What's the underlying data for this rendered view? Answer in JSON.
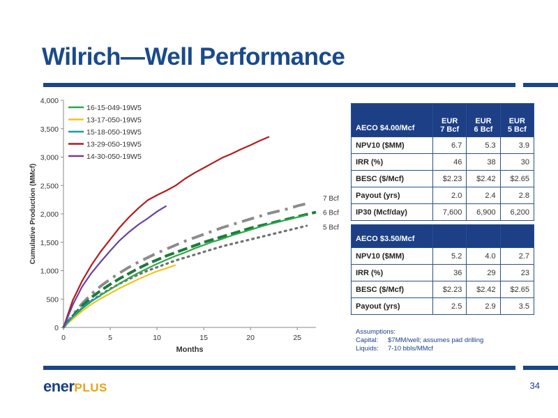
{
  "slide": {
    "title": "Wilrich—Well Performance",
    "page_number": "34",
    "logo": {
      "part1": "ener",
      "part2": "PLUS"
    }
  },
  "colors": {
    "brand_blue": "#1c3f86",
    "title_blue": "#1a4a8a",
    "logo_gold": "#e8a417"
  },
  "chart_data": {
    "type": "line",
    "xlabel": "Months",
    "ylabel": "Cumulative Production (MMcf)",
    "xlim": [
      0,
      27
    ],
    "ylim": [
      0,
      4000
    ],
    "x_ticks": [
      "0",
      "5",
      "10",
      "15",
      "20",
      "25"
    ],
    "x_tick_values": [
      0,
      5,
      10,
      15,
      20,
      25
    ],
    "y_ticks": [
      "0",
      "500",
      "1,000",
      "1,500",
      "2,000",
      "2,500",
      "3,000",
      "3,500",
      "4,000"
    ],
    "y_tick_values": [
      0,
      500,
      1000,
      1500,
      2000,
      2500,
      3000,
      3500,
      4000
    ],
    "legend_position": "top-left",
    "series": [
      {
        "name": "16-15-049-19W5",
        "color": "#2aa848",
        "style": "solid",
        "x": [
          0,
          1,
          2,
          3,
          4,
          5,
          6,
          7,
          8,
          9,
          10,
          11,
          12,
          13,
          14,
          15,
          16,
          17,
          18,
          19,
          20,
          21,
          22,
          23,
          24,
          25,
          26
        ],
        "y": [
          0,
          180,
          330,
          460,
          570,
          670,
          770,
          870,
          960,
          1040,
          1120,
          1190,
          1260,
          1320,
          1390,
          1450,
          1510,
          1560,
          1620,
          1670,
          1720,
          1770,
          1820,
          1860,
          1900,
          1940,
          1980
        ]
      },
      {
        "name": "13-17-050-19W5",
        "color": "#f2c318",
        "style": "solid",
        "x": [
          0,
          1,
          2,
          3,
          4,
          5,
          6,
          7,
          8,
          9,
          10,
          11,
          12
        ],
        "y": [
          0,
          150,
          290,
          410,
          510,
          600,
          690,
          770,
          850,
          920,
          990,
          1040,
          1100
        ]
      },
      {
        "name": "15-18-050-19W5",
        "color": "#1a9aa8",
        "style": "solid",
        "x": [
          0,
          1,
          2,
          3,
          4
        ],
        "y": [
          0,
          190,
          350,
          470,
          560
        ]
      },
      {
        "name": "13-29-050-19W5",
        "color": "#b21b1e",
        "style": "solid",
        "x": [
          0,
          1,
          2,
          3,
          4,
          5,
          6,
          7,
          8,
          9,
          10,
          11,
          12,
          13,
          14,
          15,
          16,
          17,
          18,
          19,
          20,
          21,
          22
        ],
        "y": [
          0,
          480,
          820,
          1100,
          1340,
          1550,
          1760,
          1940,
          2100,
          2240,
          2330,
          2410,
          2500,
          2620,
          2720,
          2810,
          2900,
          2990,
          3060,
          3140,
          3210,
          3290,
          3360
        ]
      },
      {
        "name": "14-30-050-19W5",
        "color": "#6a3fa0",
        "style": "solid",
        "x": [
          0,
          1,
          2,
          3,
          4,
          5,
          6,
          7,
          8,
          9,
          10,
          11
        ],
        "y": [
          0,
          400,
          720,
          960,
          1160,
          1350,
          1530,
          1680,
          1810,
          1920,
          2040,
          2140
        ]
      },
      {
        "name": "7 Bcf",
        "color": "#8c8c8c",
        "style": "dashdot",
        "x": [
          0,
          1,
          2,
          3,
          4,
          5,
          6,
          7,
          8,
          9,
          10,
          11,
          12,
          13,
          14,
          15,
          16,
          17,
          18,
          19,
          20,
          21,
          22,
          23,
          24,
          25,
          26
        ],
        "y": [
          0,
          220,
          420,
          590,
          730,
          850,
          960,
          1060,
          1150,
          1230,
          1310,
          1380,
          1450,
          1520,
          1580,
          1640,
          1700,
          1760,
          1810,
          1860,
          1910,
          1960,
          2010,
          2050,
          2090,
          2140,
          2180
        ]
      },
      {
        "name": "6 Bcf",
        "color": "#1e7a3a",
        "style": "dashed",
        "x": [
          0,
          1,
          2,
          3,
          4,
          5,
          6,
          7,
          8,
          9,
          10,
          11,
          12,
          13,
          14,
          15,
          16,
          17,
          18,
          19,
          20,
          21,
          22,
          23,
          24,
          25,
          26,
          27
        ],
        "y": [
          0,
          200,
          380,
          530,
          650,
          760,
          860,
          950,
          1040,
          1120,
          1190,
          1260,
          1320,
          1380,
          1440,
          1500,
          1550,
          1600,
          1650,
          1700,
          1750,
          1790,
          1830,
          1870,
          1910,
          1950,
          1990,
          2030
        ]
      },
      {
        "name": "5 Bcf",
        "color": "#707070",
        "style": "dotted",
        "x": [
          0,
          1,
          2,
          3,
          4,
          5,
          6,
          7,
          8,
          9,
          10,
          11,
          12,
          13,
          14,
          15,
          16,
          17,
          18,
          19,
          20,
          21,
          22,
          23,
          24,
          25,
          26
        ],
        "y": [
          0,
          180,
          340,
          470,
          580,
          680,
          770,
          850,
          930,
          1000,
          1060,
          1120,
          1180,
          1230,
          1280,
          1330,
          1380,
          1430,
          1470,
          1510,
          1550,
          1590,
          1630,
          1670,
          1710,
          1750,
          1790
        ]
      }
    ],
    "legend_series": [
      "16-15-049-19W5",
      "13-17-050-19W5",
      "15-18-050-19W5",
      "13-29-050-19W5",
      "14-30-050-19W5"
    ],
    "curve_labels": [
      {
        "series": "7 Bcf",
        "text": "7 Bcf",
        "at_x": 26.5,
        "at_y": 2280
      },
      {
        "series": "6 Bcf",
        "text": "6 Bcf",
        "at_x": 26.5,
        "at_y": 2030
      },
      {
        "series": "5 Bcf",
        "text": "5 Bcf",
        "at_x": 26.5,
        "at_y": 1770
      }
    ]
  },
  "table1": {
    "header": {
      "label": "AECO $4.00/Mcf",
      "col1": [
        "EUR",
        "7 Bcf"
      ],
      "col2": [
        "EUR",
        "6 Bcf"
      ],
      "col3": [
        "EUR",
        "5 Bcf"
      ]
    },
    "rows": [
      {
        "label": "NPV10 ($MM)",
        "v": [
          "6.7",
          "5.3",
          "3.9"
        ]
      },
      {
        "label": "IRR (%)",
        "v": [
          "46",
          "38",
          "30"
        ]
      },
      {
        "label": "BESC ($/Mcf)",
        "v": [
          "$2.23",
          "$2.42",
          "$2.65"
        ]
      },
      {
        "label": "Payout (yrs)",
        "v": [
          "2.0",
          "2.4",
          "2.8"
        ]
      },
      {
        "label": "IP30 (Mcf/day)",
        "v": [
          "7,600",
          "6,900",
          "6,200"
        ]
      }
    ]
  },
  "table2": {
    "header": {
      "label": "AECO $3.50/Mcf"
    },
    "rows": [
      {
        "label": "NPV10 ($MM)",
        "v": [
          "5.2",
          "4.0",
          "2.7"
        ]
      },
      {
        "label": "IRR (%)",
        "v": [
          "36",
          "29",
          "23"
        ]
      },
      {
        "label": "BESC ($/Mcf)",
        "v": [
          "$2.23",
          "$2.42",
          "$2.65"
        ]
      },
      {
        "label": "Payout (yrs)",
        "v": [
          "2.5",
          "2.9",
          "3.5"
        ]
      }
    ]
  },
  "assumptions": {
    "title": "Assumptions:",
    "capital_key": "Capital:",
    "capital_val": "$7MM/well; assumes pad drilling",
    "liquids_key": "Liquids:",
    "liquids_val": "7-10 bbls/MMcf"
  }
}
